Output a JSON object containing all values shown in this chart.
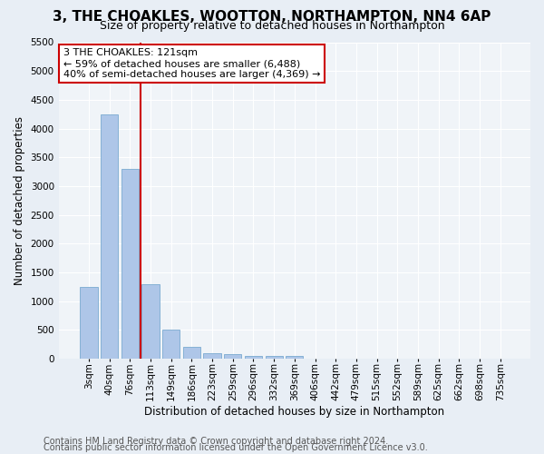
{
  "title": "3, THE CHOAKLES, WOOTTON, NORTHAMPTON, NN4 6AP",
  "subtitle": "Size of property relative to detached houses in Northampton",
  "xlabel": "Distribution of detached houses by size in Northampton",
  "ylabel": "Number of detached properties",
  "footer_line1": "Contains HM Land Registry data © Crown copyright and database right 2024.",
  "footer_line2": "Contains public sector information licensed under the Open Government Licence v3.0.",
  "bar_labels": [
    "3sqm",
    "40sqm",
    "76sqm",
    "113sqm",
    "149sqm",
    "186sqm",
    "223sqm",
    "259sqm",
    "296sqm",
    "332sqm",
    "369sqm",
    "406sqm",
    "442sqm",
    "479sqm",
    "515sqm",
    "552sqm",
    "589sqm",
    "625sqm",
    "662sqm",
    "698sqm",
    "735sqm"
  ],
  "bar_values": [
    1250,
    4250,
    3300,
    1300,
    500,
    200,
    100,
    75,
    55,
    50,
    50,
    0,
    0,
    0,
    0,
    0,
    0,
    0,
    0,
    0,
    0
  ],
  "bar_color": "#aec6e8",
  "bar_edgecolor": "#7aaad0",
  "vline_x": 2.5,
  "vline_color": "#cc0000",
  "annotation_text": "3 THE CHOAKLES: 121sqm\n← 59% of detached houses are smaller (6,488)\n40% of semi-detached houses are larger (4,369) →",
  "annotation_box_color": "#ffffff",
  "annotation_box_edgecolor": "#cc0000",
  "ylim": [
    0,
    5500
  ],
  "yticks": [
    0,
    500,
    1000,
    1500,
    2000,
    2500,
    3000,
    3500,
    4000,
    4500,
    5000,
    5500
  ],
  "bg_color": "#e8eef5",
  "plot_bg_color": "#f0f4f8",
  "title_fontsize": 11,
  "subtitle_fontsize": 9,
  "label_fontsize": 8.5,
  "tick_fontsize": 7.5,
  "footer_fontsize": 7,
  "ann_fontsize": 8
}
